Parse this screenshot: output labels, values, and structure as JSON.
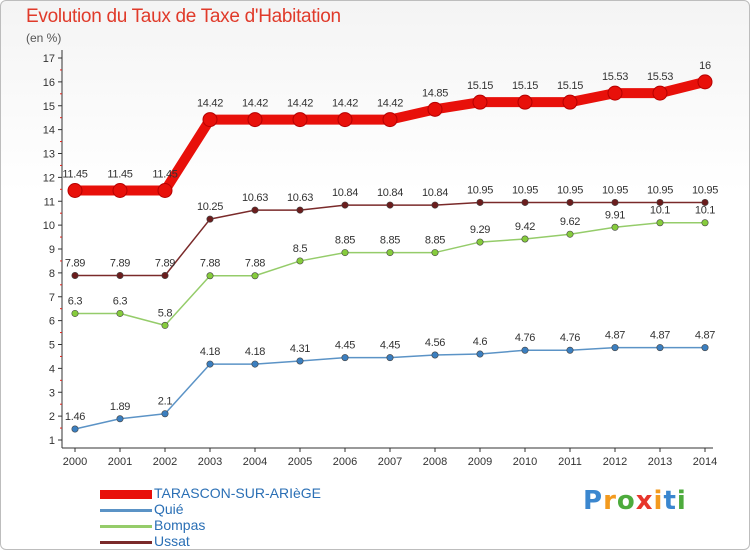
{
  "title": "Evolution du Taux de Taxe d'Habitation",
  "unit_note": "(en %)",
  "logo": {
    "letters": [
      "P",
      "r",
      "o",
      "x",
      "i",
      "t",
      "i"
    ],
    "colors": [
      "#3b87cf",
      "#f39a1e",
      "#4dab3c",
      "#e7352b",
      "#f39a1e",
      "#3b87cf",
      "#4dab3c"
    ]
  },
  "chart_data": {
    "type": "line",
    "title": "Evolution du Taux de Taxe d'Habitation",
    "ylabel": "(en %)",
    "xlabel": "",
    "x": [
      "2000",
      "2001",
      "2002",
      "2003",
      "2004",
      "2005",
      "2006",
      "2007",
      "2008",
      "2009",
      "2010",
      "2011",
      "2012",
      "2013",
      "2014"
    ],
    "ylim": [
      1,
      17
    ],
    "yticks": [
      "1",
      "2",
      "3",
      "4",
      "5",
      "6",
      "7",
      "8",
      "9",
      "10",
      "11",
      "12",
      "13",
      "14",
      "15",
      "16",
      "17"
    ],
    "grid": false,
    "legend_position": "bottom-left",
    "series": [
      {
        "name": "TARASCON-SUR-ARIèGE",
        "color": "#e8100a",
        "highlight": true,
        "values": [
          11.45,
          11.45,
          11.45,
          14.42,
          14.42,
          14.42,
          14.42,
          14.42,
          14.85,
          15.15,
          15.15,
          15.15,
          15.53,
          15.53,
          16
        ],
        "labels": [
          "11.45",
          "11.45",
          "11.45",
          "14.42",
          "14.42",
          "14.42",
          "14.42",
          "14.42",
          "14.85",
          "15.15",
          "15.15",
          "15.15",
          "15.53",
          "15.53",
          "16"
        ]
      },
      {
        "name": "Quié",
        "color": "#5b93c6",
        "marker": "#3b7fc0",
        "values": [
          1.46,
          1.89,
          2.1,
          4.18,
          4.18,
          4.31,
          4.45,
          4.45,
          4.56,
          4.6,
          4.76,
          4.76,
          4.87,
          4.87,
          4.87
        ],
        "labels": [
          "1.46",
          "1.89",
          "2.1",
          "4.18",
          "4.18",
          "4.31",
          "4.45",
          "4.45",
          "4.56",
          "4.6",
          "4.76",
          "4.76",
          "4.87",
          "4.87",
          "4.87"
        ]
      },
      {
        "name": "Bompas",
        "color": "#95cc6a",
        "marker": "#86cc3c",
        "values": [
          6.3,
          6.3,
          5.8,
          7.88,
          7.88,
          8.5,
          8.85,
          8.85,
          8.85,
          9.29,
          9.42,
          9.62,
          9.91,
          10.1,
          10.1
        ],
        "labels": [
          "6.3",
          "6.3",
          "5.8",
          "7.88",
          "7.88",
          "8.5",
          "8.85",
          "8.85",
          "8.85",
          "9.29",
          "9.42",
          "9.62",
          "9.91",
          "10.1",
          "10.1"
        ]
      },
      {
        "name": "Ussat",
        "color": "#7a2a2a",
        "marker": "#6b1d1d",
        "values": [
          7.89,
          7.89,
          7.89,
          10.25,
          10.63,
          10.63,
          10.84,
          10.84,
          10.84,
          10.95,
          10.95,
          10.95,
          10.95,
          10.95,
          10.95
        ],
        "labels": [
          "7.89",
          "7.89",
          "7.89",
          "10.25",
          "10.63",
          "10.63",
          "10.84",
          "10.84",
          "10.84",
          "10.95",
          "10.95",
          "10.95",
          "10.95",
          "10.95",
          "10.95"
        ]
      }
    ]
  }
}
